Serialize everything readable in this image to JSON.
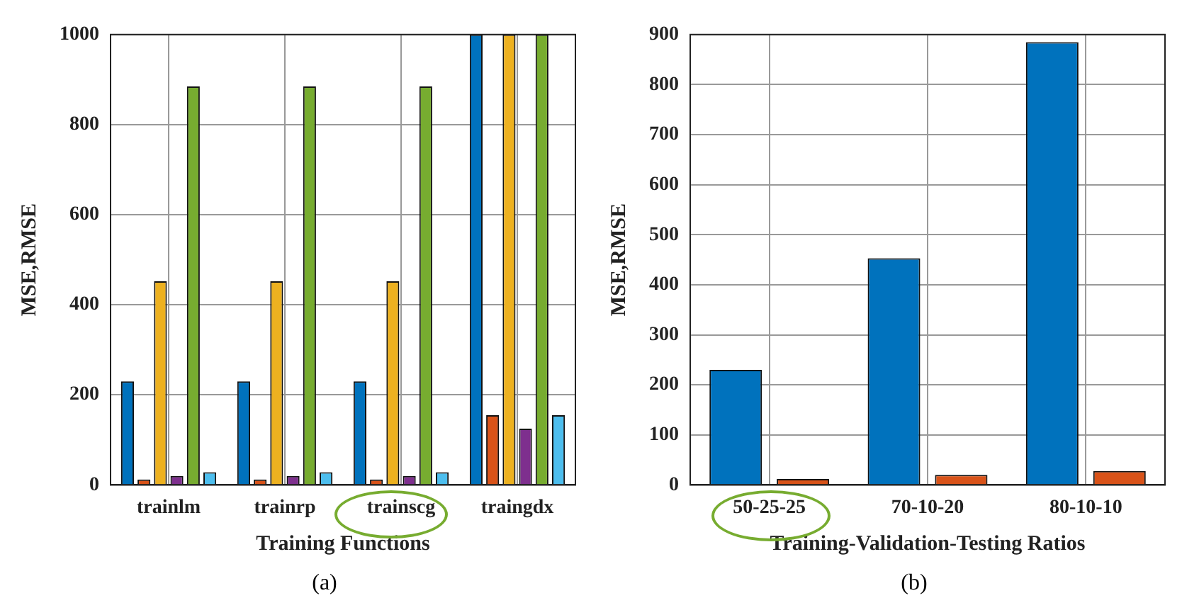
{
  "chart_data": [
    {
      "type": "bar",
      "categories": [
        "trainlm",
        "trainrp",
        "trainscg",
        "traingdx"
      ],
      "xlabel": "Training Functions",
      "ylabel": "MSE,RMSE",
      "ylim": [
        0,
        1000
      ],
      "yticks": [
        0,
        200,
        400,
        600,
        800,
        1000
      ],
      "grid": true,
      "legend": false,
      "annotations": [
        "(a)"
      ],
      "series": [
        {
          "color": "#0072bd",
          "values": [
            230,
            230,
            230,
            1000
          ]
        },
        {
          "color": "#d95319",
          "values": [
            12,
            12,
            12,
            155
          ]
        },
        {
          "color": "#edb120",
          "values": [
            452,
            452,
            452,
            1000
          ]
        },
        {
          "color": "#7e2f8e",
          "values": [
            20,
            20,
            20,
            125
          ]
        },
        {
          "color": "#77ac30",
          "values": [
            885,
            885,
            885,
            1000
          ]
        },
        {
          "color": "#4dbeee",
          "values": [
            28,
            28,
            28,
            155
          ]
        }
      ]
    },
    {
      "type": "bar",
      "categories": [
        "50-25-25",
        "70-10-20",
        "80-10-10"
      ],
      "xlabel": "Training-Validation-Testing Ratios",
      "ylabel": "MSE,RMSE",
      "ylim": [
        0,
        900
      ],
      "yticks": [
        0,
        100,
        200,
        300,
        400,
        500,
        600,
        700,
        800,
        900
      ],
      "grid": true,
      "legend": false,
      "annotations": [
        "(b)"
      ],
      "series": [
        {
          "color": "#0072bd",
          "values": [
            230,
            453,
            885
          ]
        },
        {
          "color": "#d95319",
          "values": [
            12,
            20,
            28
          ]
        }
      ]
    }
  ]
}
